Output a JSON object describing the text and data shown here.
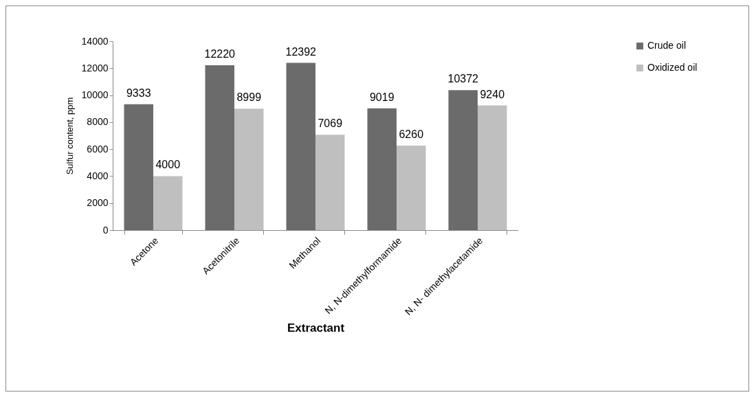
{
  "chart_data": {
    "type": "bar",
    "xlabel": "Extractant",
    "ylabel": "Sulfur content, ppm",
    "categories": [
      "Acetone",
      "Acetonitrile",
      "Methanol",
      "N, N-dimethylformamide",
      "N, N- dimethylacetamide"
    ],
    "series": [
      {
        "name": "Crude oil",
        "color": "#6b6b6b",
        "values": [
          9333,
          12220,
          12392,
          9019,
          10372
        ]
      },
      {
        "name": "Oxidized oil",
        "color": "#bfbfbf",
        "values": [
          4000,
          8999,
          7069,
          6260,
          9240
        ]
      }
    ],
    "ylim": [
      0,
      14000
    ],
    "yticks": [
      0,
      2000,
      4000,
      6000,
      8000,
      10000,
      12000,
      14000
    ],
    "grid": false,
    "legend": "right",
    "data_labels": true
  }
}
